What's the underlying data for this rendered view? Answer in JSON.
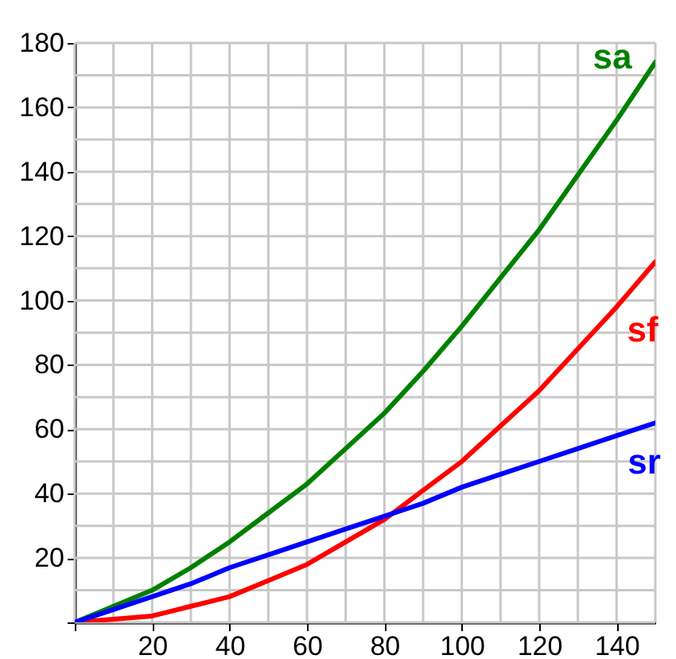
{
  "chart_data": {
    "type": "line",
    "x": [
      0,
      10,
      20,
      30,
      40,
      50,
      60,
      70,
      80,
      90,
      100,
      110,
      120,
      130,
      140,
      150
    ],
    "series": [
      {
        "name": "sa",
        "color": "#008000",
        "values": [
          0,
          5,
          10,
          17,
          25,
          34,
          43,
          54,
          65,
          78,
          92,
          107,
          122,
          139,
          156,
          174
        ]
      },
      {
        "name": "sf",
        "color": "#ff0000",
        "values": [
          0,
          1,
          2,
          5,
          8,
          13,
          18,
          25,
          32,
          41,
          50,
          61,
          72,
          85,
          98,
          112
        ]
      },
      {
        "name": "sr",
        "color": "#0000ff",
        "values": [
          0,
          4,
          8,
          12,
          17,
          21,
          25,
          29,
          33,
          37,
          42,
          46,
          50,
          54,
          58,
          62
        ]
      }
    ],
    "xlim": [
      0,
      150
    ],
    "xticks": [
      {
        "value": 0,
        "label": null
      },
      {
        "value": 10,
        "label": null
      },
      20,
      {
        "value": 30,
        "label": null
      },
      40,
      {
        "value": 50,
        "label": null
      },
      60,
      {
        "value": 70,
        "label": null
      },
      80,
      {
        "value": 90,
        "label": null
      },
      100,
      {
        "value": 110,
        "label": null
      },
      120,
      {
        "value": 130,
        "label": null
      },
      140,
      {
        "value": 150,
        "label": null
      }
    ],
    "ylim": [
      0,
      180
    ],
    "yticks": [
      {
        "value": 0,
        "label": null
      },
      {
        "value": 10,
        "label": null
      },
      20,
      {
        "value": 30,
        "label": null
      },
      40,
      {
        "value": 50,
        "label": null
      },
      60,
      {
        "value": 70,
        "label": null
      },
      80,
      {
        "value": 90,
        "label": null
      },
      100,
      {
        "value": 110,
        "label": null
      },
      120,
      {
        "value": 130,
        "label": null
      },
      140,
      {
        "value": 150,
        "label": null
      },
      160,
      {
        "value": 170,
        "label": null
      },
      180
    ],
    "grid": true,
    "line_style": "solid"
  }
}
